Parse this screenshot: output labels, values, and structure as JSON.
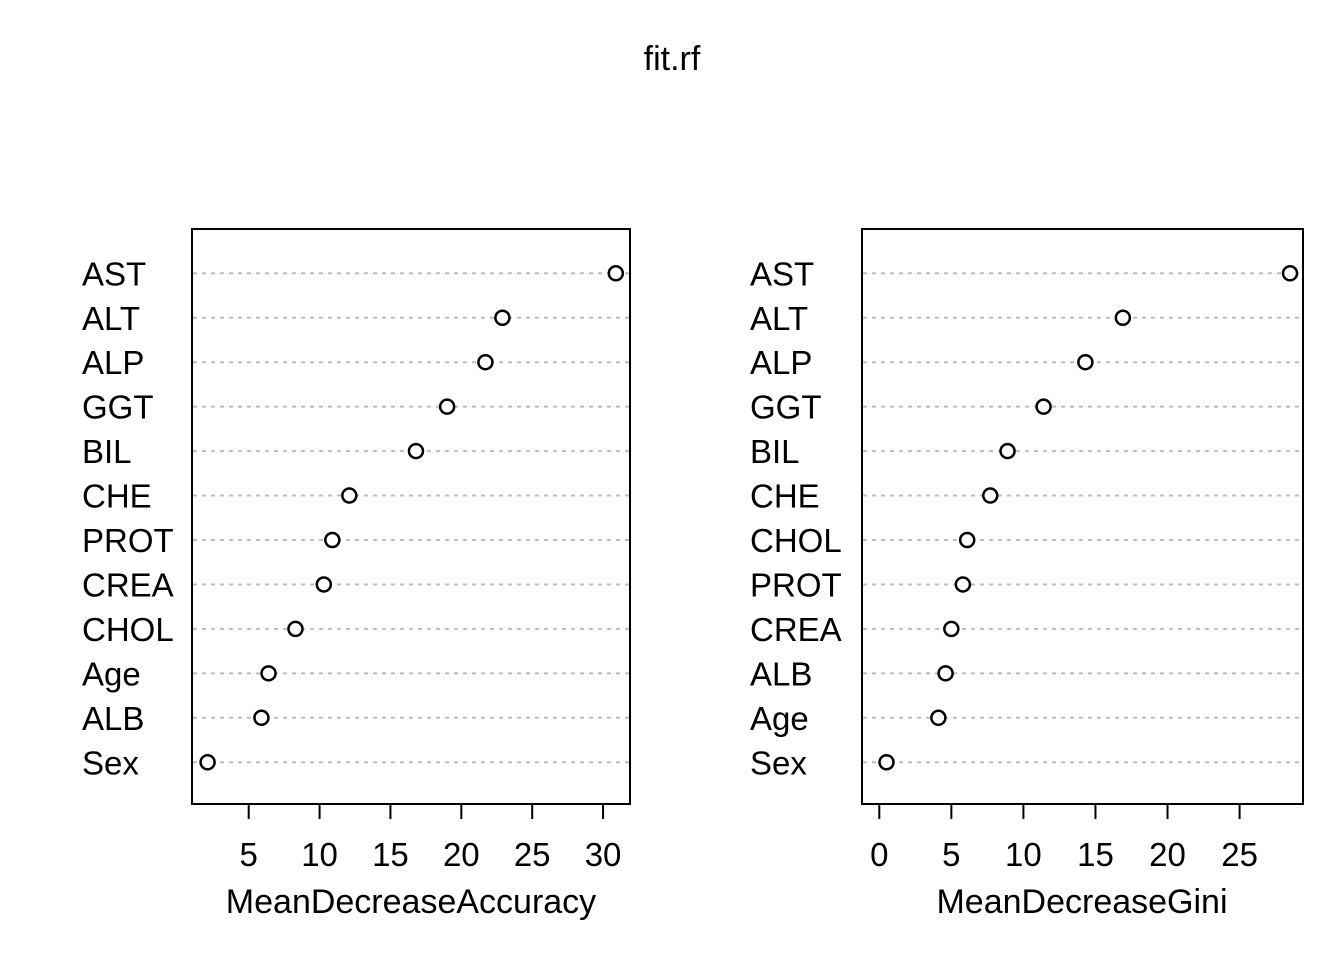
{
  "title": "fit.rf",
  "colors": {
    "foreground": "#000000",
    "background": "#ffffff",
    "gridline": "#bebebe",
    "marker_stroke": "#000000",
    "marker_fill": "#ffffff"
  },
  "marker": "open-circle",
  "chart_data": [
    {
      "type": "scatter",
      "subtype": "dotchart",
      "panel": "left",
      "xlabel": "MeanDecreaseAccuracy",
      "categories": [
        "AST",
        "ALT",
        "ALP",
        "GGT",
        "BIL",
        "CHE",
        "PROT",
        "CREA",
        "CHOL",
        "Age",
        "ALB",
        "Sex"
      ],
      "values": [
        30.9,
        22.9,
        21.7,
        19.0,
        16.8,
        12.1,
        10.9,
        10.3,
        8.3,
        6.4,
        5.9,
        2.1
      ],
      "xticks": [
        5,
        10,
        15,
        20,
        25,
        30
      ],
      "xlim": [
        1.0,
        31.9
      ],
      "grid": "dotted-horizontal",
      "legend": "none"
    },
    {
      "type": "scatter",
      "subtype": "dotchart",
      "panel": "right",
      "xlabel": "MeanDecreaseGini",
      "categories": [
        "AST",
        "ALT",
        "ALP",
        "GGT",
        "BIL",
        "CHE",
        "CHOL",
        "PROT",
        "CREA",
        "ALB",
        "Age",
        "Sex"
      ],
      "values": [
        28.5,
        16.9,
        14.3,
        11.4,
        8.9,
        7.7,
        6.1,
        5.8,
        5.0,
        4.6,
        4.1,
        0.5
      ],
      "xticks": [
        0,
        5,
        10,
        15,
        20,
        25
      ],
      "xlim": [
        -1.2,
        29.4
      ],
      "grid": "dotted-horizontal",
      "legend": "none"
    }
  ]
}
